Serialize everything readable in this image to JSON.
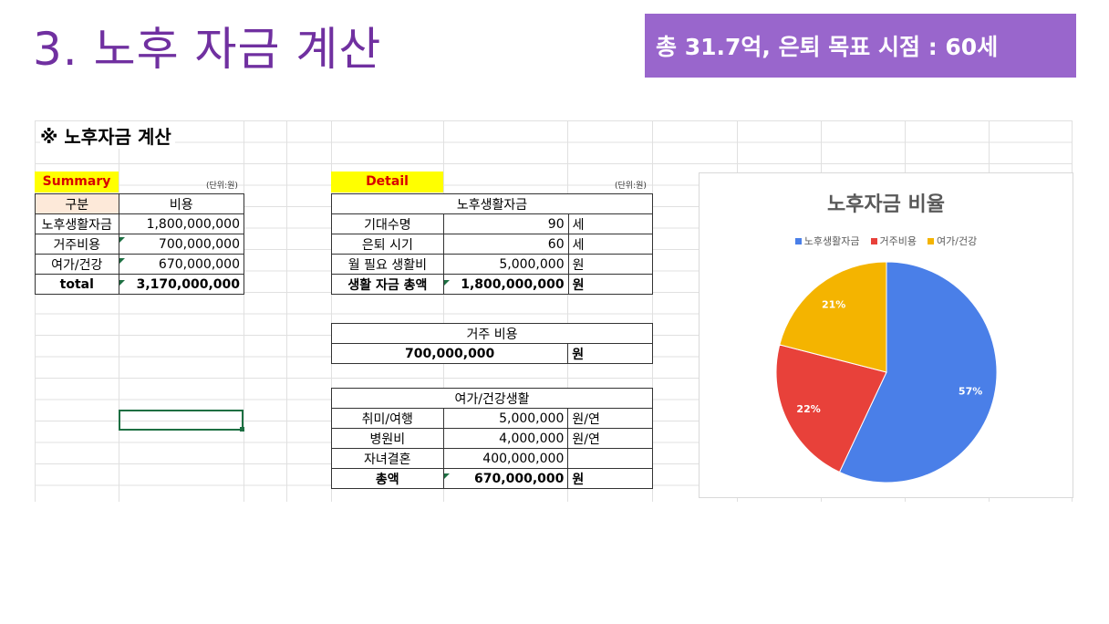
{
  "slide": {
    "title": "3. 노후 자금 계산",
    "goal": "총 31.7억, 은퇴 목표 시점 : 60세"
  },
  "sheet": {
    "heading": "※ 노후자금 계산",
    "summary": {
      "label": "Summary",
      "unit": "(단위:원)",
      "headers": [
        "구분",
        "비용"
      ],
      "rows": [
        {
          "name": "노후생활자금",
          "value": "1,800,000,000"
        },
        {
          "name": "거주비용",
          "value": "700,000,000"
        },
        {
          "name": "여가/건강",
          "value": "670,000,000"
        }
      ],
      "total": {
        "name": "total",
        "value": "3,170,000,000"
      }
    },
    "detail": {
      "label": "Detail",
      "unit": "(단위:원)",
      "living": {
        "title": "노후생활자금",
        "rows": [
          {
            "name": "기대수명",
            "value": "90",
            "unit": "세"
          },
          {
            "name": "은퇴 시기",
            "value": "60",
            "unit": "세"
          },
          {
            "name": "월 필요 생활비",
            "value": "5,000,000",
            "unit": "원"
          },
          {
            "name": "생활 자금 총액",
            "value": "1,800,000,000",
            "unit": "원"
          }
        ]
      },
      "housing": {
        "title": "거주 비용",
        "value": "700,000,000",
        "unit": "원"
      },
      "leisure": {
        "title": "여가/건강생활",
        "rows": [
          {
            "name": "취미/여행",
            "value": "5,000,000",
            "unit": "원/연"
          },
          {
            "name": "병원비",
            "value": "4,000,000",
            "unit": "원/연"
          },
          {
            "name": "자녀결혼",
            "value": "400,000,000",
            "unit": ""
          },
          {
            "name": "총액",
            "value": "670,000,000",
            "unit": "원"
          }
        ]
      }
    }
  },
  "chart_data": {
    "type": "pie",
    "title": "노후자금 비율",
    "categories": [
      "노후생활자금",
      "거주비용",
      "여가/건강"
    ],
    "values": [
      57,
      22,
      21
    ],
    "labels": [
      "57%",
      "22%",
      "21%"
    ],
    "colors": [
      "#4a7fe8",
      "#e8413a",
      "#f4b400"
    ],
    "legend_position": "top"
  }
}
